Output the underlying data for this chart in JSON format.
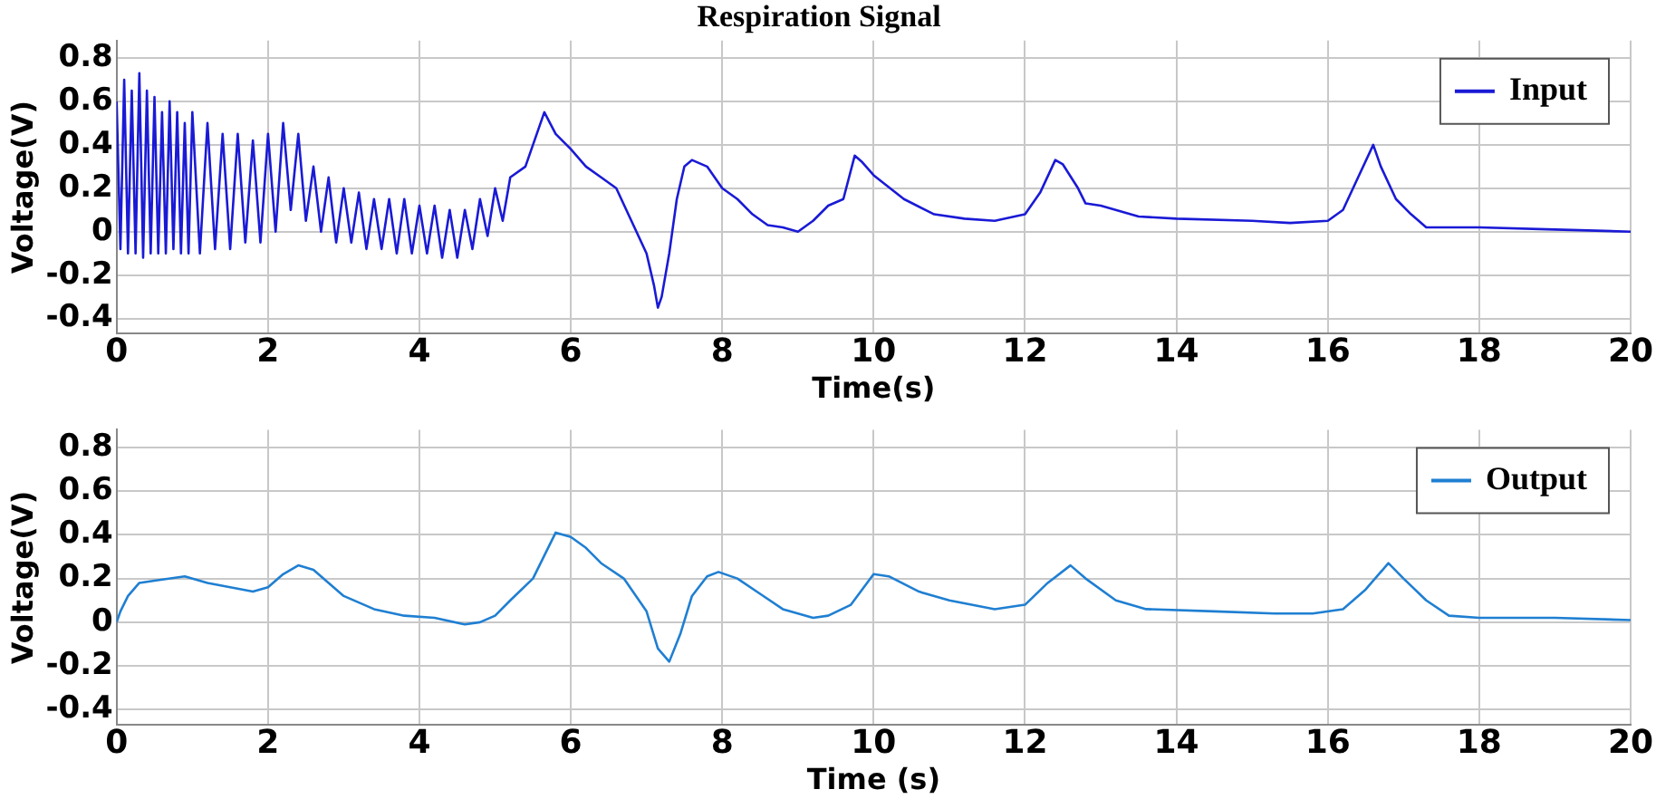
{
  "chart_data": [
    {
      "type": "line",
      "title": "Respiration Signal",
      "xlabel": "Time(s)",
      "ylabel": "Voltage(V)",
      "xlim": [
        0,
        20
      ],
      "xticks": [
        0,
        2,
        4,
        6,
        8,
        10,
        12,
        14,
        16,
        18,
        20
      ],
      "ylim": [
        -0.47,
        0.88
      ],
      "yticks": [
        -0.4,
        -0.2,
        0,
        0.2,
        0.4,
        0.6,
        0.8
      ],
      "grid": true,
      "legend": "top right",
      "marker": "none",
      "line_style": "solid",
      "series": [
        {
          "name": "Input",
          "color": "#1a1ad6",
          "x": [
            0,
            0.05,
            0.1,
            0.15,
            0.2,
            0.25,
            0.3,
            0.35,
            0.4,
            0.45,
            0.5,
            0.55,
            0.6,
            0.65,
            0.7,
            0.75,
            0.8,
            0.85,
            0.9,
            0.95,
            1.0,
            1.1,
            1.2,
            1.3,
            1.4,
            1.5,
            1.6,
            1.7,
            1.8,
            1.9,
            2.0,
            2.1,
            2.2,
            2.3,
            2.4,
            2.5,
            2.6,
            2.7,
            2.8,
            2.9,
            3.0,
            3.1,
            3.2,
            3.3,
            3.4,
            3.5,
            3.6,
            3.7,
            3.8,
            3.9,
            4.0,
            4.1,
            4.2,
            4.3,
            4.4,
            4.5,
            4.6,
            4.7,
            4.8,
            4.9,
            5.0,
            5.1,
            5.2,
            5.4,
            5.6,
            5.65,
            5.8,
            6.0,
            6.2,
            6.4,
            6.6,
            6.8,
            7.0,
            7.1,
            7.15,
            7.2,
            7.3,
            7.4,
            7.5,
            7.6,
            7.8,
            8.0,
            8.2,
            8.4,
            8.6,
            8.8,
            9.0,
            9.2,
            9.4,
            9.6,
            9.75,
            9.85,
            10.0,
            10.4,
            10.8,
            11.2,
            11.6,
            12.0,
            12.2,
            12.4,
            12.5,
            12.7,
            12.8,
            13.0,
            13.5,
            14.0,
            15.0,
            15.5,
            16.0,
            16.2,
            16.4,
            16.6,
            16.7,
            16.9,
            17.1,
            17.3,
            18.0,
            19.0,
            20.0
          ],
          "values": [
            0.6,
            -0.08,
            0.7,
            -0.1,
            0.65,
            -0.1,
            0.73,
            -0.12,
            0.65,
            -0.1,
            0.62,
            -0.1,
            0.55,
            -0.1,
            0.6,
            -0.08,
            0.55,
            -0.1,
            0.5,
            -0.1,
            0.55,
            -0.1,
            0.5,
            -0.08,
            0.45,
            -0.08,
            0.45,
            -0.05,
            0.42,
            -0.05,
            0.45,
            0.0,
            0.5,
            0.1,
            0.45,
            0.05,
            0.3,
            0.0,
            0.25,
            -0.05,
            0.2,
            -0.05,
            0.18,
            -0.08,
            0.15,
            -0.08,
            0.15,
            -0.1,
            0.15,
            -0.1,
            0.12,
            -0.1,
            0.12,
            -0.12,
            0.1,
            -0.12,
            0.1,
            -0.08,
            0.15,
            -0.02,
            0.2,
            0.05,
            0.25,
            0.3,
            0.5,
            0.55,
            0.45,
            0.38,
            0.3,
            0.25,
            0.2,
            0.05,
            -0.1,
            -0.25,
            -0.35,
            -0.3,
            -0.1,
            0.15,
            0.3,
            0.33,
            0.3,
            0.2,
            0.15,
            0.08,
            0.03,
            0.02,
            0.0,
            0.05,
            0.12,
            0.15,
            0.35,
            0.32,
            0.26,
            0.15,
            0.08,
            0.06,
            0.05,
            0.08,
            0.18,
            0.33,
            0.31,
            0.2,
            0.13,
            0.12,
            0.07,
            0.06,
            0.05,
            0.04,
            0.05,
            0.1,
            0.25,
            0.4,
            0.3,
            0.15,
            0.08,
            0.02,
            0.02,
            0.01,
            0.0
          ]
        }
      ]
    },
    {
      "type": "line",
      "xlabel": "Time (s)",
      "ylabel": "Voltage(V)",
      "xlim": [
        0,
        20
      ],
      "xticks": [
        0,
        2,
        4,
        6,
        8,
        10,
        12,
        14,
        16,
        18,
        20
      ],
      "ylim": [
        -0.47,
        0.88
      ],
      "yticks": [
        -0.4,
        -0.2,
        0,
        0.2,
        0.4,
        0.6,
        0.8
      ],
      "grid": true,
      "legend": "top right",
      "marker": "none",
      "line_style": "solid",
      "series": [
        {
          "name": "Output",
          "color": "#1f7fd2",
          "x": [
            0,
            0.05,
            0.15,
            0.3,
            0.5,
            0.9,
            1.2,
            1.5,
            1.8,
            2.0,
            2.2,
            2.4,
            2.6,
            2.8,
            3.0,
            3.4,
            3.8,
            4.2,
            4.6,
            4.8,
            5.0,
            5.2,
            5.5,
            5.8,
            6.0,
            6.2,
            6.4,
            6.7,
            7.0,
            7.15,
            7.3,
            7.45,
            7.6,
            7.8,
            7.95,
            8.2,
            8.5,
            8.8,
            9.2,
            9.4,
            9.7,
            10.0,
            10.2,
            10.6,
            11.0,
            11.6,
            12.0,
            12.3,
            12.6,
            12.8,
            13.2,
            13.6,
            14.5,
            15.3,
            15.8,
            16.2,
            16.5,
            16.8,
            17.0,
            17.3,
            17.6,
            18.0,
            19.0,
            20.0
          ],
          "values": [
            0.0,
            0.05,
            0.12,
            0.18,
            0.19,
            0.21,
            0.18,
            0.16,
            0.14,
            0.16,
            0.22,
            0.26,
            0.24,
            0.18,
            0.12,
            0.06,
            0.03,
            0.02,
            -0.01,
            0.0,
            0.03,
            0.1,
            0.2,
            0.41,
            0.39,
            0.34,
            0.27,
            0.2,
            0.05,
            -0.12,
            -0.18,
            -0.05,
            0.12,
            0.21,
            0.23,
            0.2,
            0.13,
            0.06,
            0.02,
            0.03,
            0.08,
            0.22,
            0.21,
            0.14,
            0.1,
            0.06,
            0.08,
            0.18,
            0.26,
            0.2,
            0.1,
            0.06,
            0.05,
            0.04,
            0.04,
            0.06,
            0.15,
            0.27,
            0.2,
            0.1,
            0.03,
            0.02,
            0.02,
            0.01
          ]
        }
      ]
    }
  ]
}
